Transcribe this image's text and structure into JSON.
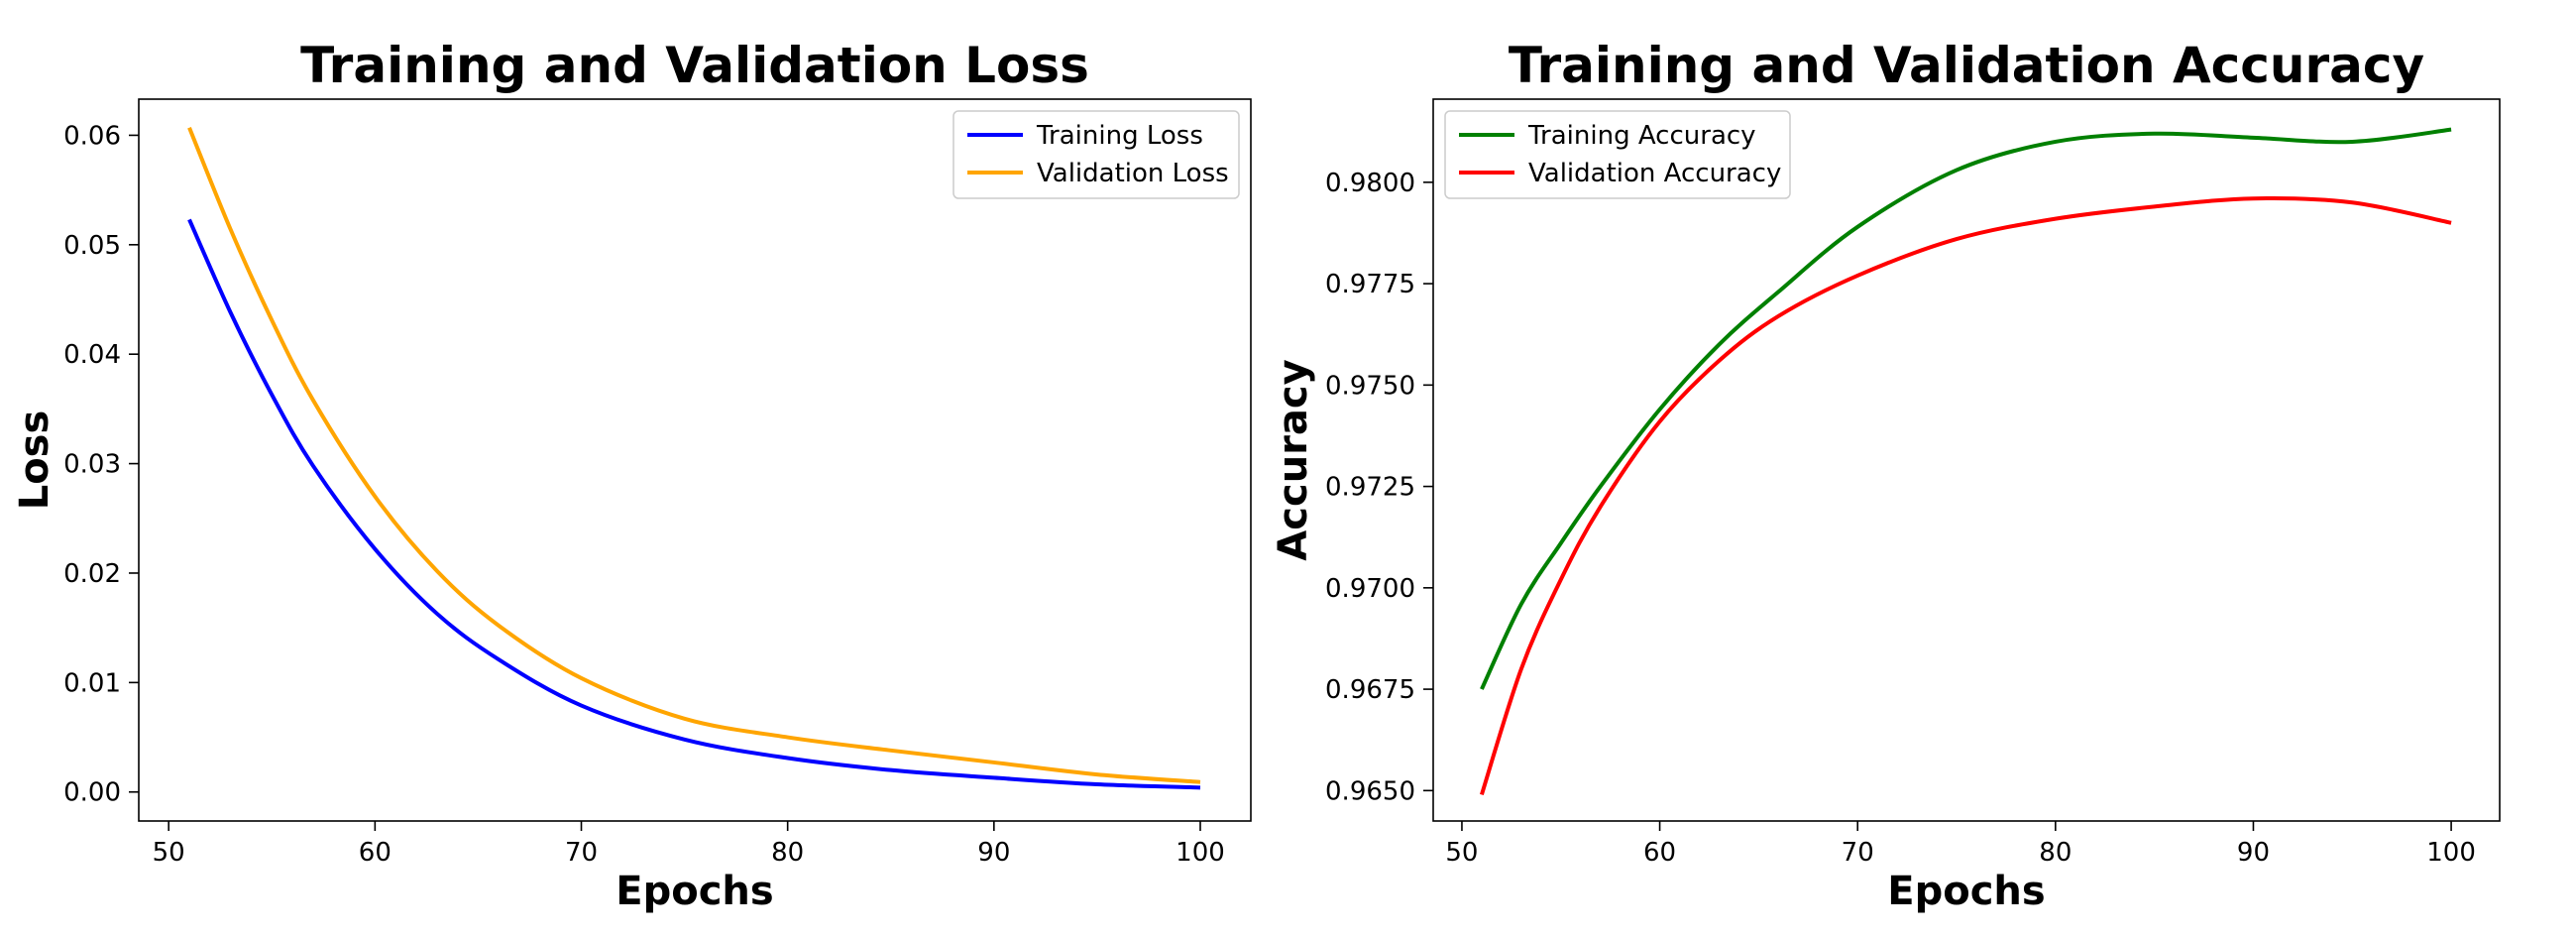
{
  "chart_data": [
    {
      "type": "line",
      "title": "Training and Validation Loss",
      "xlabel": "Epochs",
      "ylabel": "Loss",
      "xlim": [
        48.55,
        102.45
      ],
      "ylim": [
        -0.00265,
        0.0633
      ],
      "xticks": [
        50,
        60,
        70,
        80,
        90,
        100
      ],
      "yticks": [
        0.0,
        0.01,
        0.02,
        0.03,
        0.04,
        0.05,
        0.06
      ],
      "ytick_decimals": 2,
      "legend": "top-right",
      "x": [
        51,
        53,
        55,
        57,
        60,
        63,
        66,
        70,
        75,
        80,
        85,
        90,
        95,
        100
      ],
      "series": [
        {
          "name": "Training Loss",
          "color": "#0000ff",
          "values": [
            0.0523,
            0.0438,
            0.0363,
            0.0298,
            0.0222,
            0.0163,
            0.0121,
            0.0079,
            0.0048,
            0.0031,
            0.002,
            0.0013,
            0.0007,
            0.0004
          ]
        },
        {
          "name": "Validation Loss",
          "color": "#ffa500",
          "values": [
            0.0607,
            0.0514,
            0.0431,
            0.0358,
            0.027,
            0.0202,
            0.0152,
            0.0104,
            0.0067,
            0.005,
            0.0038,
            0.0027,
            0.0016,
            0.0009
          ]
        }
      ]
    },
    {
      "type": "line",
      "title": "Training and Validation Accuracy",
      "xlabel": "Epochs",
      "ylabel": "Accuracy",
      "xlim": [
        48.55,
        102.45
      ],
      "ylim": [
        0.96425,
        0.98205
      ],
      "xticks": [
        50,
        60,
        70,
        80,
        90,
        100
      ],
      "yticks": [
        0.965,
        0.9675,
        0.97,
        0.9725,
        0.975,
        0.9775,
        0.98
      ],
      "ytick_decimals": 4,
      "legend": "top-left",
      "x": [
        51,
        53,
        55,
        57,
        60,
        63,
        66,
        70,
        75,
        80,
        85,
        90,
        95,
        100
      ],
      "series": [
        {
          "name": "Training Accuracy",
          "color": "#008000",
          "values": [
            0.9675,
            0.9696,
            0.9711,
            0.9725,
            0.9744,
            0.976,
            0.9773,
            0.9789,
            0.9803,
            0.981,
            0.9812,
            0.9811,
            0.981,
            0.9813
          ]
        },
        {
          "name": "Validation Accuracy",
          "color": "#ff0000",
          "values": [
            0.9649,
            0.968,
            0.9702,
            0.972,
            0.9741,
            0.9756,
            0.9767,
            0.9777,
            0.9786,
            0.9791,
            0.9794,
            0.9796,
            0.9795,
            0.979
          ]
        }
      ]
    }
  ]
}
